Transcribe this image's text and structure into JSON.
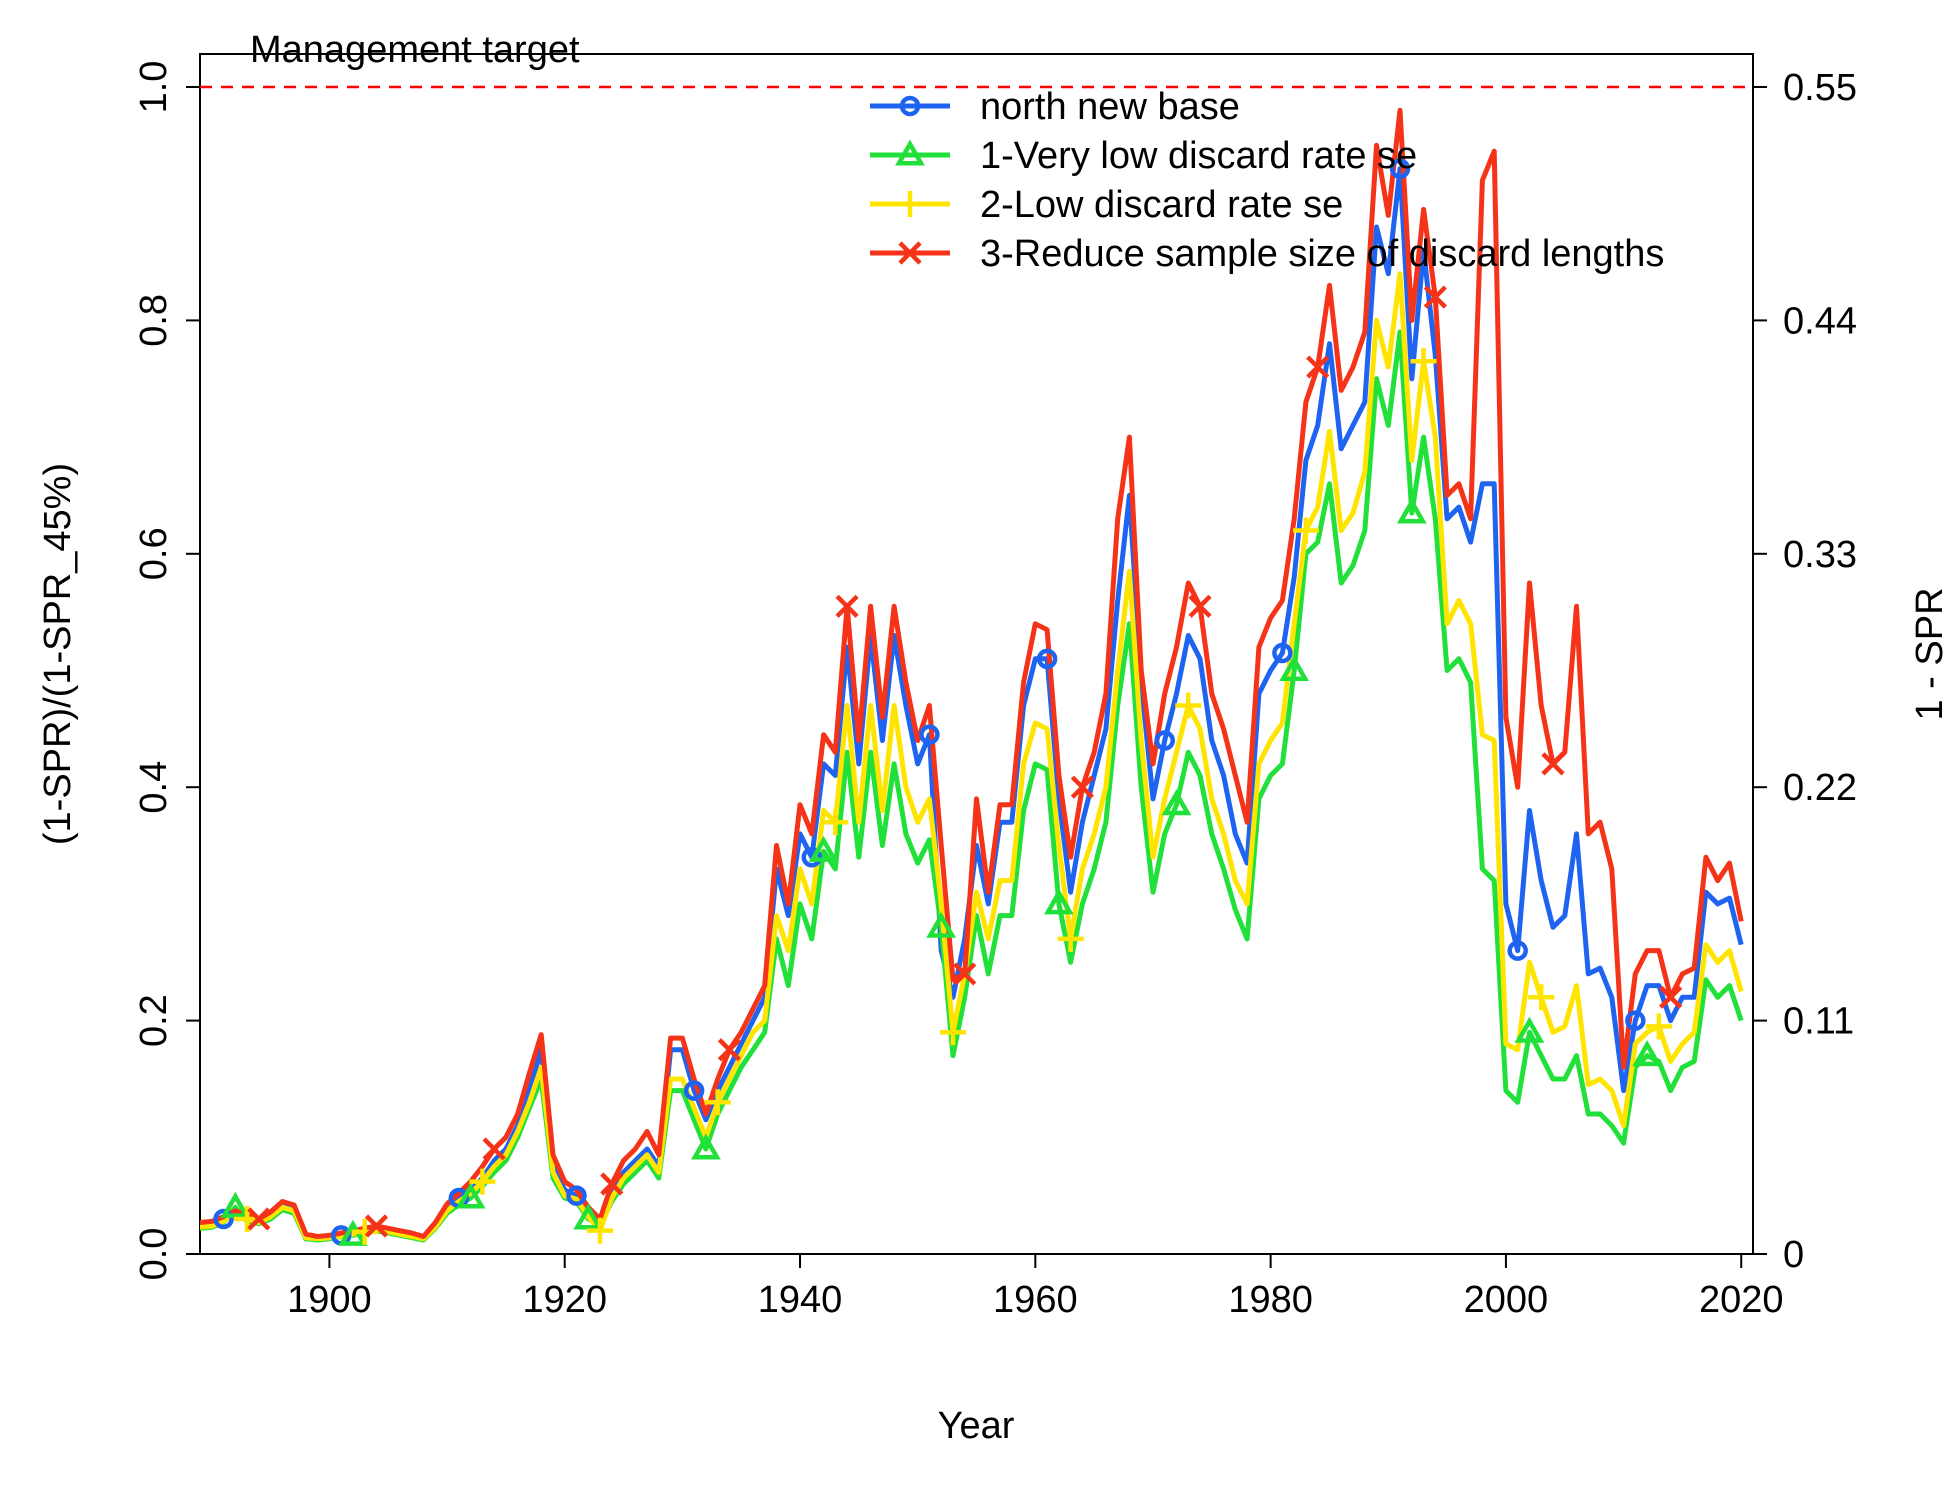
{
  "chart_data": {
    "type": "line",
    "xlabel": "Year",
    "ylabel": "(1-SPR)/(1-SPR_45%)",
    "ylabel_right": "1 - SPR",
    "xlim": [
      1889,
      2021
    ],
    "ylim": [
      0,
      1.0
    ],
    "x_ticks": [
      1900,
      1920,
      1940,
      1960,
      1980,
      2000,
      2020
    ],
    "y_ticks": [
      0.0,
      0.2,
      0.4,
      0.6,
      0.8,
      1.0
    ],
    "y_tick_labels": [
      "0.0",
      "0.2",
      "0.4",
      "0.6",
      "0.8",
      "1.0"
    ],
    "y_right_ticks": [
      0,
      0.2,
      0.4,
      0.6,
      0.8,
      1.0
    ],
    "y_right_tick_labels": [
      "0",
      "0.11",
      "0.22",
      "0.33",
      "0.44",
      "0.55"
    ],
    "reference_line": {
      "y": 1.0,
      "label": "Management target",
      "color": "#ff0000",
      "style": "dashed"
    },
    "legend_position": "top-center",
    "x": [
      1889,
      1890,
      1891,
      1892,
      1893,
      1894,
      1895,
      1896,
      1897,
      1898,
      1899,
      1900,
      1901,
      1902,
      1903,
      1904,
      1905,
      1906,
      1907,
      1908,
      1909,
      1910,
      1911,
      1912,
      1913,
      1914,
      1915,
      1916,
      1917,
      1918,
      1919,
      1920,
      1921,
      1922,
      1923,
      1924,
      1925,
      1926,
      1927,
      1928,
      1929,
      1930,
      1931,
      1932,
      1933,
      1934,
      1935,
      1936,
      1937,
      1938,
      1939,
      1940,
      1941,
      1942,
      1943,
      1944,
      1945,
      1946,
      1947,
      1948,
      1949,
      1950,
      1951,
      1952,
      1953,
      1954,
      1955,
      1956,
      1957,
      1958,
      1959,
      1960,
      1961,
      1962,
      1963,
      1964,
      1965,
      1966,
      1967,
      1968,
      1969,
      1970,
      1971,
      1972,
      1973,
      1974,
      1975,
      1976,
      1977,
      1978,
      1979,
      1980,
      1981,
      1982,
      1983,
      1984,
      1985,
      1986,
      1987,
      1988,
      1989,
      1990,
      1991,
      1992,
      1993,
      1994,
      1995,
      1996,
      1997,
      1998,
      1999,
      2000,
      2001,
      2002,
      2003,
      2004,
      2005,
      2006,
      2007,
      2008,
      2009,
      2010,
      2011,
      2012,
      2013,
      2014,
      2015,
      2016,
      2017,
      2018,
      2019,
      2020
    ],
    "series": [
      {
        "name": "north new base",
        "color": "#1e64f0",
        "marker": "circle",
        "marker_years": [
          1891,
          1901,
          1911,
          1921,
          1931,
          1941,
          1951,
          1961,
          1971,
          1981,
          1991,
          2001,
          2011
        ],
        "values": [
          0.025,
          0.026,
          0.03,
          0.034,
          0.03,
          0.029,
          0.034,
          0.043,
          0.04,
          0.016,
          0.014,
          0.015,
          0.016,
          0.018,
          0.02,
          0.022,
          0.02,
          0.018,
          0.016,
          0.014,
          0.025,
          0.04,
          0.048,
          0.055,
          0.065,
          0.08,
          0.09,
          0.11,
          0.14,
          0.175,
          0.075,
          0.055,
          0.05,
          0.035,
          0.028,
          0.05,
          0.07,
          0.08,
          0.09,
          0.075,
          0.175,
          0.175,
          0.14,
          0.115,
          0.14,
          0.16,
          0.18,
          0.2,
          0.22,
          0.33,
          0.29,
          0.36,
          0.34,
          0.42,
          0.41,
          0.52,
          0.42,
          0.53,
          0.44,
          0.53,
          0.47,
          0.42,
          0.445,
          0.26,
          0.22,
          0.27,
          0.35,
          0.3,
          0.37,
          0.37,
          0.47,
          0.51,
          0.51,
          0.39,
          0.31,
          0.37,
          0.41,
          0.45,
          0.56,
          0.65,
          0.49,
          0.39,
          0.44,
          0.48,
          0.53,
          0.51,
          0.44,
          0.41,
          0.36,
          0.335,
          0.48,
          0.5,
          0.515,
          0.58,
          0.68,
          0.71,
          0.78,
          0.69,
          0.71,
          0.73,
          0.88,
          0.84,
          0.93,
          0.75,
          0.86,
          0.77,
          0.63,
          0.64,
          0.61,
          0.66,
          0.66,
          0.3,
          0.26,
          0.38,
          0.32,
          0.28,
          0.29,
          0.36,
          0.24,
          0.245,
          0.22,
          0.14,
          0.2,
          0.23,
          0.23,
          0.2,
          0.22,
          0.22,
          0.31,
          0.3,
          0.305,
          0.265
        ]
      },
      {
        "name": "1-Very low discard rate se",
        "color": "#22e03a",
        "marker": "triangle",
        "marker_years": [
          1892,
          1902,
          1912,
          1922,
          1932,
          1942,
          1952,
          1962,
          1972,
          1982,
          1992,
          2002,
          2012
        ],
        "values": [
          0.022,
          0.023,
          0.027,
          0.04,
          0.028,
          0.026,
          0.03,
          0.038,
          0.035,
          0.013,
          0.012,
          0.013,
          0.015,
          0.016,
          0.018,
          0.02,
          0.018,
          0.016,
          0.014,
          0.012,
          0.022,
          0.035,
          0.042,
          0.048,
          0.058,
          0.07,
          0.08,
          0.1,
          0.125,
          0.15,
          0.065,
          0.048,
          0.045,
          0.03,
          0.025,
          0.045,
          0.06,
          0.07,
          0.08,
          0.065,
          0.14,
          0.14,
          0.115,
          0.09,
          0.12,
          0.14,
          0.16,
          0.175,
          0.19,
          0.27,
          0.23,
          0.3,
          0.27,
          0.345,
          0.33,
          0.43,
          0.34,
          0.43,
          0.35,
          0.42,
          0.36,
          0.335,
          0.355,
          0.28,
          0.17,
          0.22,
          0.29,
          0.24,
          0.29,
          0.29,
          0.38,
          0.42,
          0.415,
          0.3,
          0.25,
          0.3,
          0.33,
          0.37,
          0.47,
          0.54,
          0.4,
          0.31,
          0.36,
          0.385,
          0.43,
          0.41,
          0.36,
          0.33,
          0.295,
          0.27,
          0.39,
          0.41,
          0.42,
          0.5,
          0.6,
          0.61,
          0.66,
          0.575,
          0.59,
          0.62,
          0.75,
          0.71,
          0.79,
          0.635,
          0.7,
          0.63,
          0.5,
          0.51,
          0.49,
          0.33,
          0.32,
          0.14,
          0.13,
          0.19,
          0.17,
          0.15,
          0.15,
          0.17,
          0.12,
          0.12,
          0.11,
          0.095,
          0.16,
          0.17,
          0.165,
          0.14,
          0.16,
          0.165,
          0.235,
          0.22,
          0.23,
          0.2
        ]
      },
      {
        "name": "2-Low discard rate se",
        "color": "#ffe400",
        "marker": "plus",
        "marker_years": [
          1893,
          1903,
          1913,
          1923,
          1933,
          1943,
          1953,
          1963,
          1973,
          1983,
          1993,
          2003,
          2013
        ],
        "values": [
          0.023,
          0.024,
          0.028,
          0.035,
          0.03,
          0.027,
          0.032,
          0.04,
          0.037,
          0.014,
          0.013,
          0.014,
          0.015,
          0.017,
          0.019,
          0.021,
          0.019,
          0.017,
          0.015,
          0.013,
          0.023,
          0.037,
          0.045,
          0.052,
          0.062,
          0.075,
          0.085,
          0.105,
          0.13,
          0.16,
          0.07,
          0.05,
          0.047,
          0.032,
          0.02,
          0.048,
          0.065,
          0.075,
          0.085,
          0.07,
          0.15,
          0.15,
          0.125,
          0.1,
          0.13,
          0.15,
          0.17,
          0.19,
          0.2,
          0.29,
          0.26,
          0.33,
          0.3,
          0.38,
          0.37,
          0.47,
          0.37,
          0.47,
          0.38,
          0.47,
          0.4,
          0.37,
          0.39,
          0.3,
          0.19,
          0.24,
          0.31,
          0.27,
          0.32,
          0.32,
          0.42,
          0.455,
          0.45,
          0.35,
          0.27,
          0.33,
          0.36,
          0.4,
          0.5,
          0.585,
          0.44,
          0.34,
          0.39,
          0.43,
          0.47,
          0.45,
          0.39,
          0.36,
          0.32,
          0.3,
          0.42,
          0.44,
          0.455,
          0.54,
          0.62,
          0.64,
          0.705,
          0.62,
          0.635,
          0.67,
          0.8,
          0.76,
          0.84,
          0.68,
          0.765,
          0.7,
          0.54,
          0.56,
          0.54,
          0.445,
          0.44,
          0.18,
          0.175,
          0.25,
          0.22,
          0.19,
          0.195,
          0.23,
          0.145,
          0.15,
          0.14,
          0.11,
          0.18,
          0.19,
          0.195,
          0.165,
          0.18,
          0.19,
          0.265,
          0.25,
          0.26,
          0.225
        ]
      },
      {
        "name": "3-Reduce sample size of discard lengths",
        "color": "#f53318",
        "marker": "cross",
        "marker_years": [
          1894,
          1904,
          1914,
          1924,
          1934,
          1944,
          1954,
          1964,
          1974,
          1984,
          1994,
          2004,
          2014
        ],
        "values": [
          0.027,
          0.028,
          0.032,
          0.037,
          0.033,
          0.03,
          0.036,
          0.045,
          0.042,
          0.017,
          0.015,
          0.016,
          0.018,
          0.02,
          0.022,
          0.024,
          0.022,
          0.02,
          0.018,
          0.015,
          0.027,
          0.043,
          0.052,
          0.062,
          0.075,
          0.09,
          0.1,
          0.12,
          0.155,
          0.188,
          0.085,
          0.062,
          0.055,
          0.04,
          0.03,
          0.06,
          0.08,
          0.09,
          0.105,
          0.085,
          0.185,
          0.185,
          0.15,
          0.12,
          0.15,
          0.175,
          0.19,
          0.21,
          0.23,
          0.35,
          0.3,
          0.385,
          0.36,
          0.445,
          0.43,
          0.555,
          0.44,
          0.555,
          0.46,
          0.555,
          0.49,
          0.44,
          0.47,
          0.35,
          0.235,
          0.24,
          0.39,
          0.31,
          0.385,
          0.385,
          0.49,
          0.54,
          0.535,
          0.41,
          0.34,
          0.4,
          0.43,
          0.48,
          0.63,
          0.7,
          0.5,
          0.42,
          0.48,
          0.52,
          0.575,
          0.555,
          0.48,
          0.45,
          0.41,
          0.37,
          0.52,
          0.545,
          0.56,
          0.63,
          0.73,
          0.76,
          0.83,
          0.74,
          0.76,
          0.79,
          0.95,
          0.89,
          0.98,
          0.8,
          0.895,
          0.82,
          0.65,
          0.66,
          0.63,
          0.92,
          0.945,
          0.46,
          0.4,
          0.575,
          0.47,
          0.42,
          0.43,
          0.555,
          0.36,
          0.37,
          0.33,
          0.16,
          0.24,
          0.26,
          0.26,
          0.22,
          0.24,
          0.245,
          0.34,
          0.32,
          0.335,
          0.285
        ]
      }
    ]
  }
}
